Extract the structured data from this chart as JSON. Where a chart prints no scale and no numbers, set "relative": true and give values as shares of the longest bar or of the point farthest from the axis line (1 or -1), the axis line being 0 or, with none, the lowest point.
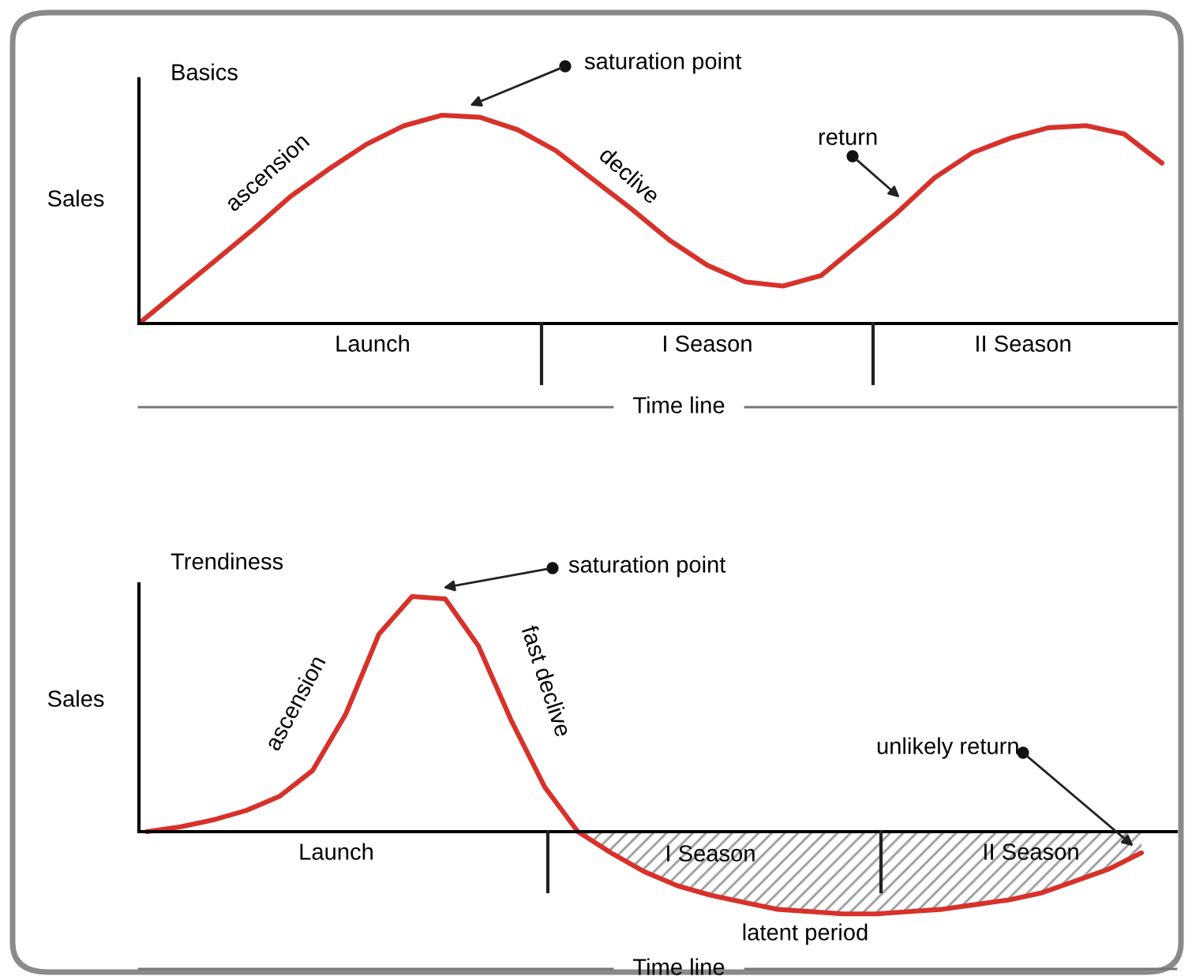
{
  "chart_data": [
    {
      "type": "line",
      "title": "Basics",
      "ylabel": "Sales",
      "xlabel": "Time line",
      "relative": true,
      "categories": [
        null,
        null,
        null,
        null,
        null,
        null,
        null,
        null,
        null,
        null,
        null,
        null,
        null,
        null,
        null,
        null,
        null,
        null,
        null,
        null,
        null,
        null,
        null,
        null,
        null,
        null,
        null,
        null
      ],
      "series": [
        {
          "color": "#d7312a",
          "values": [
            0,
            0.15,
            0.3,
            0.45,
            0.61,
            0.74,
            0.86,
            0.95,
            1.0,
            0.99,
            0.93,
            0.83,
            0.69,
            0.55,
            0.4,
            0.28,
            0.2,
            0.18,
            0.23,
            0.38,
            0.53,
            0.7,
            0.82,
            0.89,
            0.94,
            0.95,
            0.91,
            0.77
          ]
        }
      ],
      "annotations": [
        "saturation point",
        "ascension",
        "declive",
        "return",
        "Launch",
        "I Season",
        "II Season"
      ]
    },
    {
      "type": "line",
      "title": "Trendiness",
      "ylabel": "Sales",
      "xlabel": "Time line",
      "relative": true,
      "categories": [
        null,
        null,
        null,
        null,
        null,
        null,
        null,
        null,
        null,
        null,
        null,
        null,
        null,
        null,
        null,
        null,
        null,
        null,
        null,
        null,
        null,
        null,
        null,
        null,
        null,
        null,
        null,
        null,
        null,
        null,
        null
      ],
      "series": [
        {
          "color": "#d7312a",
          "values": [
            0,
            0.02,
            0.05,
            0.09,
            0.15,
            0.26,
            0.5,
            0.84,
            1.0,
            0.99,
            0.79,
            0.47,
            0.19,
            0,
            -0.09,
            -0.17,
            -0.23,
            -0.27,
            -0.3,
            -0.33,
            -0.34,
            -0.35,
            -0.35,
            -0.34,
            -0.33,
            -0.31,
            -0.29,
            -0.26,
            -0.21,
            -0.16,
            -0.09
          ]
        },
        {
          "type": "area",
          "color": "#9a9a9a",
          "values": [
            null,
            null,
            null,
            null,
            null,
            null,
            null,
            null,
            null,
            null,
            null,
            null,
            null,
            0,
            -0.09,
            -0.17,
            -0.23,
            -0.27,
            -0.3,
            -0.33,
            -0.34,
            -0.35,
            -0.35,
            -0.34,
            -0.33,
            -0.31,
            -0.29,
            -0.26,
            -0.21,
            -0.16,
            -0.09
          ]
        }
      ],
      "annotations": [
        "saturation point",
        "ascension",
        "fast declive",
        "unlikely return",
        "Launch",
        "I Season",
        "II Season",
        "latent period"
      ]
    }
  ]
}
